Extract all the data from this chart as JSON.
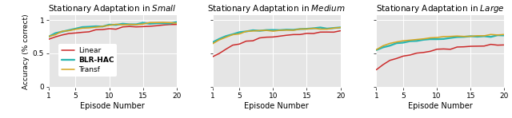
{
  "titles": [
    "Stationary Adaptation in $\\it{Small}$",
    "Stationary Adaptation in $\\it{Medium}$",
    "Stationary Adaptation in $\\it{Large}$"
  ],
  "xlabel": "Episode Number",
  "ylabel": "Accuracy (% correct)",
  "x": [
    1,
    2,
    3,
    4,
    5,
    6,
    7,
    8,
    9,
    10,
    11,
    12,
    13,
    14,
    15,
    16,
    17,
    18,
    19,
    20
  ],
  "colors": {
    "Linear": "#cc2b2b",
    "BLR-HAC": "#2ab5b0",
    "Transf": "#d4a520"
  },
  "small": {
    "Linear": [
      0.715,
      0.735,
      0.77,
      0.795,
      0.815,
      0.825,
      0.835,
      0.845,
      0.855,
      0.865,
      0.875,
      0.885,
      0.895,
      0.905,
      0.91,
      0.915,
      0.92,
      0.925,
      0.935,
      0.94
    ],
    "BLR-HAC": [
      0.76,
      0.8,
      0.835,
      0.855,
      0.875,
      0.885,
      0.895,
      0.905,
      0.915,
      0.925,
      0.93,
      0.937,
      0.942,
      0.947,
      0.95,
      0.952,
      0.955,
      0.957,
      0.96,
      0.962
    ],
    "Transf": [
      0.745,
      0.79,
      0.825,
      0.845,
      0.865,
      0.875,
      0.885,
      0.895,
      0.905,
      0.915,
      0.925,
      0.93,
      0.937,
      0.942,
      0.947,
      0.95,
      0.952,
      0.955,
      0.958,
      0.96
    ]
  },
  "medium": {
    "Linear": [
      0.44,
      0.51,
      0.57,
      0.62,
      0.65,
      0.68,
      0.7,
      0.72,
      0.73,
      0.745,
      0.755,
      0.765,
      0.775,
      0.785,
      0.793,
      0.8,
      0.808,
      0.815,
      0.822,
      0.83
    ],
    "BLR-HAC": [
      0.655,
      0.715,
      0.76,
      0.79,
      0.815,
      0.828,
      0.838,
      0.845,
      0.85,
      0.855,
      0.858,
      0.862,
      0.865,
      0.868,
      0.872,
      0.875,
      0.878,
      0.88,
      0.883,
      0.885
    ],
    "Transf": [
      0.645,
      0.705,
      0.75,
      0.78,
      0.805,
      0.818,
      0.828,
      0.835,
      0.84,
      0.845,
      0.848,
      0.852,
      0.855,
      0.858,
      0.862,
      0.865,
      0.868,
      0.87,
      0.873,
      0.875
    ]
  },
  "large": {
    "Linear": [
      0.265,
      0.33,
      0.385,
      0.425,
      0.455,
      0.48,
      0.502,
      0.52,
      0.537,
      0.55,
      0.562,
      0.573,
      0.582,
      0.592,
      0.6,
      0.61,
      0.617,
      0.623,
      0.63,
      0.638
    ],
    "BLR-HAC": [
      0.548,
      0.593,
      0.627,
      0.652,
      0.67,
      0.683,
      0.693,
      0.703,
      0.712,
      0.72,
      0.727,
      0.733,
      0.738,
      0.743,
      0.748,
      0.752,
      0.756,
      0.76,
      0.763,
      0.767
    ],
    "Transf": [
      0.558,
      0.612,
      0.647,
      0.672,
      0.69,
      0.703,
      0.713,
      0.723,
      0.732,
      0.74,
      0.747,
      0.753,
      0.758,
      0.763,
      0.768,
      0.772,
      0.776,
      0.78,
      0.783,
      0.787
    ]
  },
  "ylim": [
    -0.02,
    1.08
  ],
  "yticks": [
    0,
    0.5,
    1.0
  ],
  "xticks": [
    1,
    5,
    10,
    15,
    20
  ],
  "bg_color": "#e5e5e5",
  "legend_order": [
    "Linear",
    "BLR-HAC",
    "Transf"
  ],
  "lw": 1.1,
  "noise_seed": 42
}
